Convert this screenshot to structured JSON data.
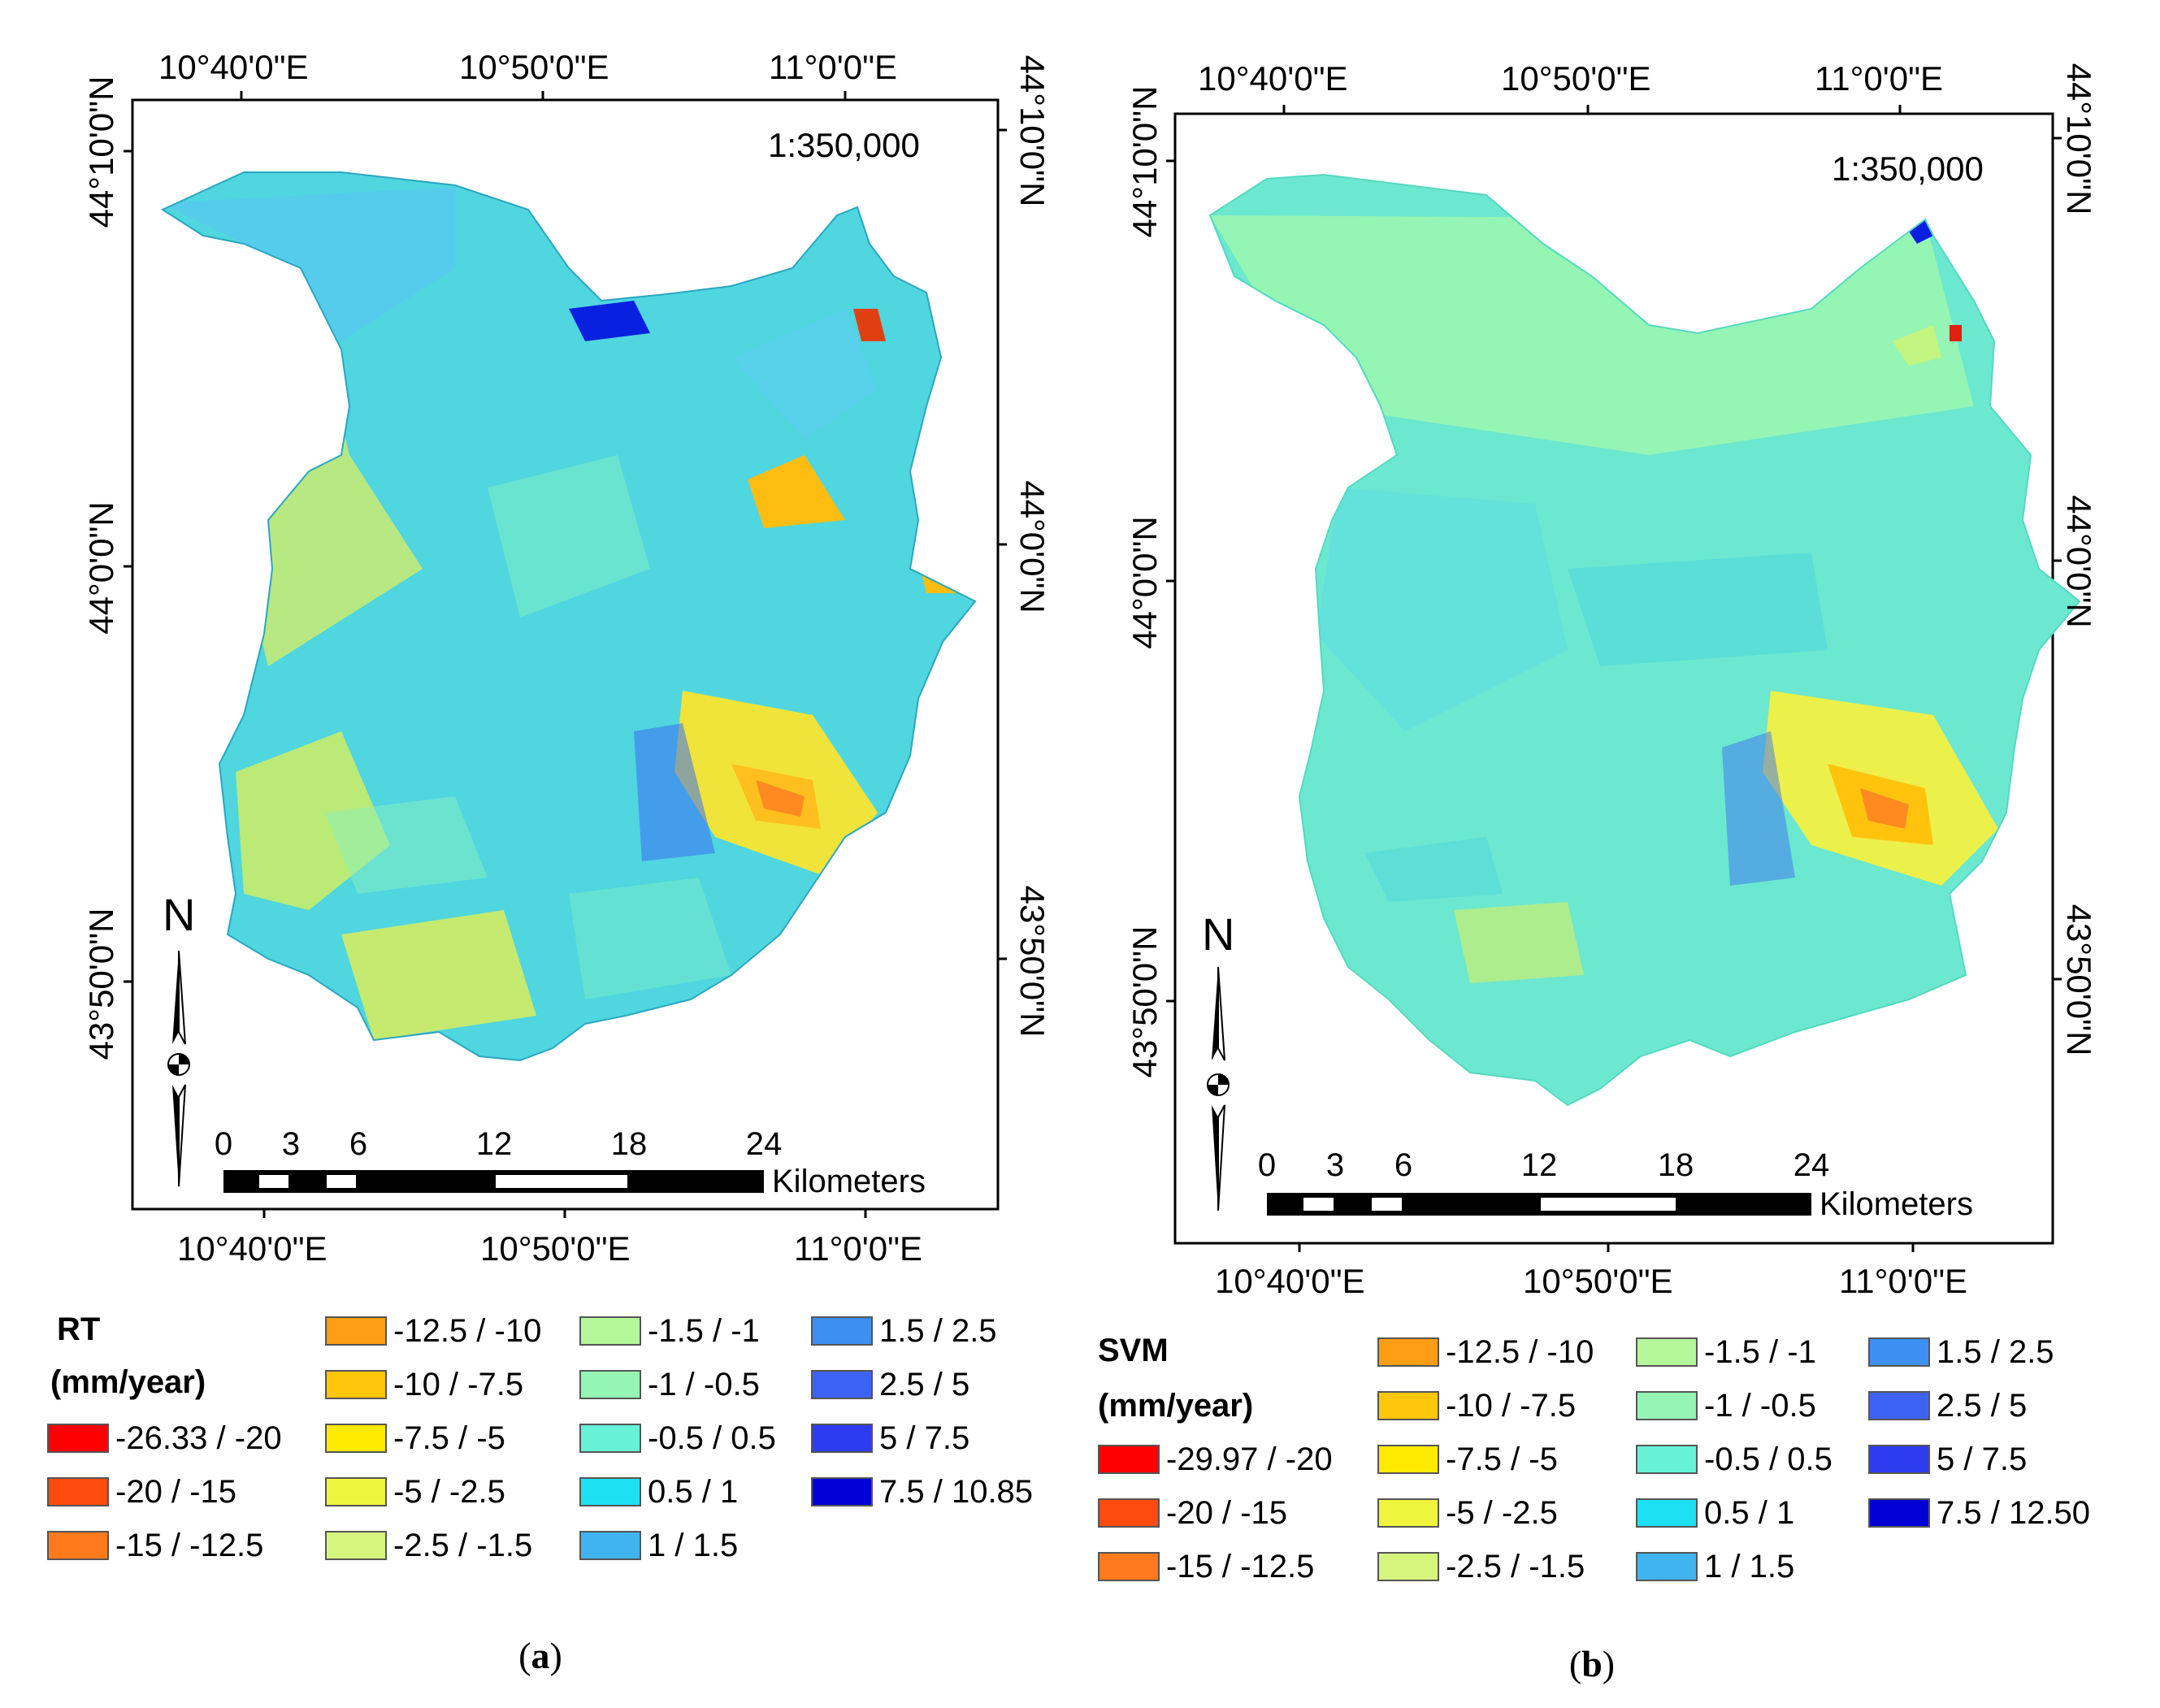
{
  "panels": [
    {
      "id": "a",
      "scale_ratio": "1:350,000",
      "top_lon_labels": [
        "10°40'0\"E",
        "10°50'0\"E",
        "11°0'0\"E"
      ],
      "bottom_lon_labels": [
        "10°40'0\"E",
        "10°50'0\"E",
        "11°0'0\"E"
      ],
      "lat_labels": [
        "44°10'0\"N",
        "44°0'0\"N",
        "43°50'0\"N"
      ],
      "north_label": "N",
      "scalebar": {
        "ticks": [
          "0",
          "3",
          "6",
          "12",
          "18",
          "24"
        ],
        "unit": "Kilometers"
      },
      "legend_title_1": "RT",
      "legend_title_2": "(mm/year)",
      "caption_letter": "a"
    },
    {
      "id": "b",
      "scale_ratio": "1:350,000",
      "top_lon_labels": [
        "10°40'0\"E",
        "10°50'0\"E",
        "11°0'0\"E"
      ],
      "bottom_lon_labels": [
        "10°40'0\"E",
        "10°50'0\"E",
        "11°0'0\"E"
      ],
      "lat_labels": [
        "44°10'0\"N",
        "44°0'0\"N",
        "43°50'0\"N"
      ],
      "north_label": "N",
      "scalebar": {
        "ticks": [
          "0",
          "3",
          "6",
          "12",
          "18",
          "24"
        ],
        "unit": "Kilometers"
      },
      "legend_title_1": "SVM",
      "legend_title_2": "(mm/year)",
      "caption_letter": "b"
    }
  ],
  "legend_a": [
    {
      "label": "-26.33 / -20",
      "color": "#ff0000"
    },
    {
      "label": "-20 / -15",
      "color": "#ff4a10"
    },
    {
      "label": "-15 / -12.5",
      "color": "#ff7a1c"
    },
    {
      "label": "-12.5 / -10",
      "color": "#ff9e12"
    },
    {
      "label": "-10 / -7.5",
      "color": "#ffc60a"
    },
    {
      "label": "-7.5 / -5",
      "color": "#ffea00"
    },
    {
      "label": "-5 / -2.5",
      "color": "#eef53c"
    },
    {
      "label": "-2.5 / -1.5",
      "color": "#d6f57c"
    },
    {
      "label": "-1.5 / -1",
      "color": "#b4f79a"
    },
    {
      "label": "-1 / -0.5",
      "color": "#95f5b4"
    },
    {
      "label": "-0.5 / 0.5",
      "color": "#66f2d6"
    },
    {
      "label": "0.5 / 1",
      "color": "#1ee0f5"
    },
    {
      "label": "1 / 1.5",
      "color": "#3fb4f0"
    },
    {
      "label": "1.5 / 2.5",
      "color": "#3d8ff2"
    },
    {
      "label": "2.5 / 5",
      "color": "#3d63f5"
    },
    {
      "label": "5 / 7.5",
      "color": "#2e3cf0"
    },
    {
      "label": "7.5 / 10.85",
      "color": "#0000d6"
    }
  ],
  "legend_b": [
    {
      "label": "-29.97 / -20",
      "color": "#ff0000"
    },
    {
      "label": "-20 / -15",
      "color": "#ff4a10"
    },
    {
      "label": "-15 / -12.5",
      "color": "#ff7a1c"
    },
    {
      "label": "-12.5 / -10",
      "color": "#ff9e12"
    },
    {
      "label": "-10 / -7.5",
      "color": "#ffc60a"
    },
    {
      "label": "-7.5 / -5",
      "color": "#ffea00"
    },
    {
      "label": "-5 / -2.5",
      "color": "#eef53c"
    },
    {
      "label": "-2.5 / -1.5",
      "color": "#d6f57c"
    },
    {
      "label": "-1.5 / -1",
      "color": "#b4f79a"
    },
    {
      "label": "-1 / -0.5",
      "color": "#95f5b4"
    },
    {
      "label": "-0.5 / 0.5",
      "color": "#66f2d6"
    },
    {
      "label": "0.5 / 1",
      "color": "#1ee0f5"
    },
    {
      "label": "1 / 1.5",
      "color": "#3fb4f0"
    },
    {
      "label": "1.5 / 2.5",
      "color": "#3d8ff2"
    },
    {
      "label": "2.5 / 5",
      "color": "#3d63f5"
    },
    {
      "label": "5 / 7.5",
      "color": "#2e3cf0"
    },
    {
      "label": "7.5 / 12.50",
      "color": "#0000d6"
    }
  ]
}
